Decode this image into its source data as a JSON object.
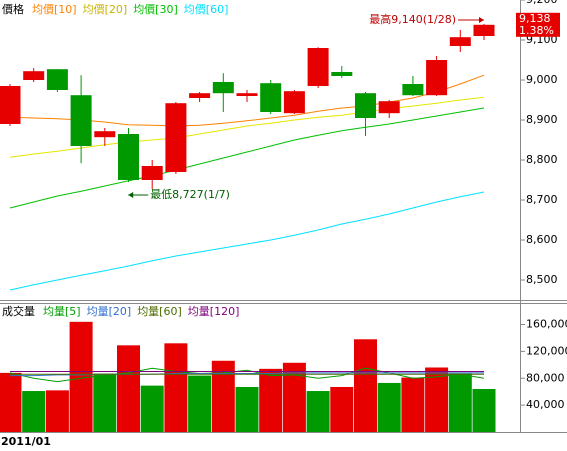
{
  "chart_data": [
    {
      "type": "candlestick",
      "label": "價格",
      "categories": [
        null,
        null,
        null,
        null,
        null,
        null,
        null,
        null,
        null,
        null,
        null,
        null,
        null,
        null,
        null,
        null,
        null,
        null,
        null,
        null,
        null
      ],
      "open": [
        8890,
        9000,
        9027,
        8962,
        8857,
        8865,
        8750,
        8770,
        8955,
        8995,
        8960,
        8992,
        8917,
        8985,
        9020,
        8967,
        8917,
        8990,
        8962,
        9085,
        9110
      ],
      "high": [
        8990,
        9030,
        9027,
        9012,
        8880,
        8880,
        8800,
        8945,
        8970,
        9017,
        8975,
        9000,
        8975,
        9082,
        9035,
        8970,
        8950,
        9010,
        9060,
        9125,
        9140
      ],
      "low": [
        8885,
        8995,
        8970,
        8792,
        8835,
        8745,
        8727,
        8765,
        8945,
        8920,
        8945,
        8915,
        8915,
        8980,
        9005,
        8860,
        8905,
        8960,
        8960,
        9070,
        9100
      ],
      "close": [
        8985,
        9022,
        8975,
        8835,
        8872,
        8750,
        8785,
        8942,
        8967,
        8967,
        8967,
        8920,
        8972,
        9080,
        9010,
        8905,
        8947,
        8962,
        9050,
        9107,
        9138
      ],
      "up_color": "#e60000",
      "down_color": "#009a00",
      "series": [
        {
          "name": "均價[10]",
          "color": "#ff8000",
          "values": [
            8907,
            8905,
            8903,
            8900,
            8895,
            8888,
            8887,
            8885,
            8887,
            8892,
            8898,
            8905,
            8912,
            8922,
            8930,
            8935,
            8945,
            8955,
            8970,
            8990,
            9012
          ]
        },
        {
          "name": "均價[20]",
          "color": "#e6e600",
          "values": [
            8807,
            8815,
            8822,
            8830,
            8838,
            8845,
            8850,
            8855,
            8865,
            8875,
            8885,
            8892,
            8900,
            8907,
            8912,
            8920,
            8928,
            8935,
            8942,
            8950,
            8957
          ]
        },
        {
          "name": "均價[30]",
          "color": "#00c000",
          "values": [
            8680,
            8695,
            8710,
            8722,
            8735,
            8748,
            8760,
            8775,
            8790,
            8805,
            8820,
            8835,
            8850,
            8862,
            8873,
            8882,
            8890,
            8900,
            8910,
            8920,
            8930
          ]
        },
        {
          "name": "均價[60]",
          "color": "#00e0ff",
          "values": [
            8475,
            8488,
            8500,
            8512,
            8523,
            8535,
            8548,
            8560,
            8570,
            8580,
            8590,
            8600,
            8612,
            8625,
            8640,
            8652,
            8665,
            8680,
            8695,
            8708,
            8720
          ]
        }
      ],
      "ylim": [
        8450,
        9200
      ],
      "yticks": [
        {
          "value": 9200,
          "label": "9,200"
        },
        {
          "value": 9100,
          "label": "9,100"
        },
        {
          "value": 9000,
          "label": "9,000"
        },
        {
          "value": 8900,
          "label": "8,900"
        },
        {
          "value": 8800,
          "label": "8,800"
        },
        {
          "value": 8700,
          "label": "8,700"
        },
        {
          "value": 8600,
          "label": "8,600"
        },
        {
          "value": 8500,
          "label": "8,500"
        }
      ],
      "high_annotation": "最高9,140(1/28)",
      "low_annotation": "最低8,727(1/7)",
      "last_price": "9,138",
      "last_change": "1.38%"
    },
    {
      "type": "bar",
      "label": "成交量",
      "categories": [
        "2011/01",
        null,
        null,
        null,
        null,
        null,
        null,
        null,
        null,
        null,
        null,
        null,
        null,
        null,
        null,
        null,
        null,
        null,
        null,
        null,
        null
      ],
      "values": [
        88000,
        61000,
        62000,
        164000,
        87000,
        129000,
        69000,
        132000,
        84000,
        106000,
        67000,
        94000,
        103000,
        61000,
        67000,
        138000,
        73000,
        81000,
        96000,
        87000,
        64000
      ],
      "colors": [
        "#e60000",
        "#009a00",
        "#e60000",
        "#e60000",
        "#009a00",
        "#e60000",
        "#009a00",
        "#e60000",
        "#009a00",
        "#e60000",
        "#009a00",
        "#e60000",
        "#e60000",
        "#009a00",
        "#e60000",
        "#e60000",
        "#009a00",
        "#e60000",
        "#e60000",
        "#009a00",
        "#009a00"
      ],
      "series": [
        {
          "name": "均量[5]",
          "color": "#00a000",
          "values": [
            88000,
            80000,
            75000,
            80000,
            85000,
            88000,
            95000,
            90000,
            87000,
            88000,
            92000,
            84000,
            85000,
            80000,
            84000,
            95000,
            88000,
            80000,
            82000,
            86000,
            80000
          ]
        },
        {
          "name": "均量[20]",
          "color": "#3070d0",
          "values": [
            84000,
            84000,
            85000,
            85000,
            86000,
            86000,
            86000,
            87000,
            87000,
            87000,
            87000,
            87000,
            88000,
            88000,
            88000,
            88000,
            88000,
            88000,
            88000,
            88000,
            88000
          ]
        },
        {
          "name": "均量[60]",
          "color": "#4d6b00",
          "values": [
            86000,
            86000,
            86000,
            86000,
            86000,
            86000,
            86000,
            86000,
            86000,
            86000,
            86000,
            86000,
            86000,
            86000,
            86000,
            86000,
            86000,
            86000,
            86000,
            86000,
            86000
          ]
        },
        {
          "name": "均量[120]",
          "color": "#800080",
          "values": [
            90000,
            90000,
            90000,
            90000,
            90000,
            90000,
            90000,
            90000,
            90000,
            90000,
            90000,
            90000,
            90000,
            90000,
            90000,
            90000,
            90000,
            90000,
            90000,
            90000,
            90000
          ]
        }
      ],
      "ylim": [
        0,
        192000
      ],
      "yticks": [
        {
          "value": 160000,
          "label": "160,000"
        },
        {
          "value": 120000,
          "label": "120,000"
        },
        {
          "value": 80000,
          "label": "80,000"
        },
        {
          "value": 40000,
          "label": "40,000"
        }
      ]
    }
  ]
}
